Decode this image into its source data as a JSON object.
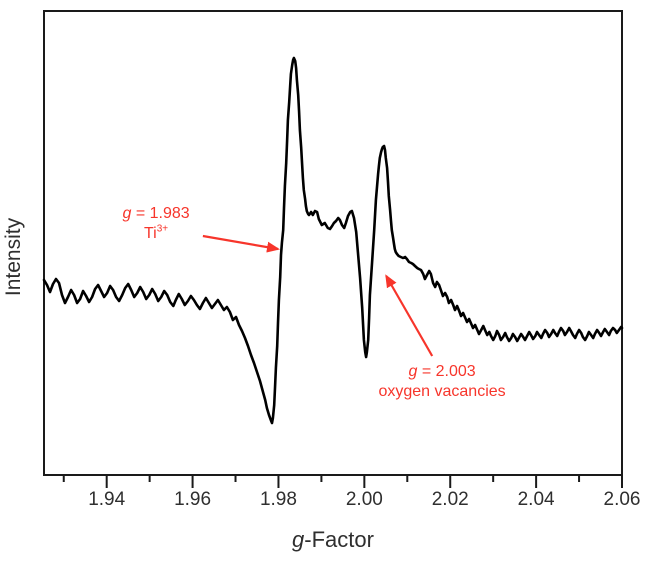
{
  "chart_data": {
    "type": "line",
    "xlabel_italic": "g",
    "xlabel_rest": "-Factor",
    "ylabel": "Intensity",
    "xlim": [
      1.9254,
      2.06
    ],
    "ylim": [
      -175,
      289
    ],
    "grid": false,
    "legend": "none",
    "line_color": "#000000",
    "axis_color": "#1a1a1a",
    "text_color": "#2f2f2f",
    "accent_red": "#f7352b",
    "x_major_ticks": [
      {
        "g": 1.94,
        "label": "1.94"
      },
      {
        "g": 1.96,
        "label": "1.96"
      },
      {
        "g": 1.98,
        "label": "1.98"
      },
      {
        "g": 2.0,
        "label": "2.00"
      },
      {
        "g": 2.02,
        "label": "2.02"
      },
      {
        "g": 2.04,
        "label": "2.04"
      },
      {
        "g": 2.06,
        "label": "2.06"
      }
    ],
    "x_minor_ticks": [
      1.93,
      1.95,
      1.97,
      1.99,
      2.01,
      2.03,
      2.05
    ],
    "annotations": [
      {
        "id": "ti3plus",
        "color": "#f7352b",
        "line1_italic": "g",
        "line1_rest": " = 1.983",
        "line2_text": "Ti",
        "line2_sup": "3+",
        "anchor_g": 1.9515,
        "anchor_i": 96,
        "arrow": {
          "from": [
            1.9624,
            64
          ],
          "to": [
            1.9799,
            51
          ]
        }
      },
      {
        "id": "oxygen-vacancies",
        "color": "#f7352b",
        "line1_italic": "g",
        "line1_rest": " = 2.003",
        "line2_text": "oxygen vacancies",
        "line2_sup": "",
        "anchor_g": 2.0181,
        "anchor_i": -62,
        "arrow": {
          "from": [
            2.0158,
            -56
          ],
          "to": [
            2.0051,
            24
          ]
        }
      }
    ],
    "series": [
      {
        "points": [
          [
            1.9254,
            20
          ],
          [
            1.9261,
            15
          ],
          [
            1.9268,
            8
          ],
          [
            1.9275,
            16
          ],
          [
            1.9282,
            21
          ],
          [
            1.9289,
            17
          ],
          [
            1.9296,
            5
          ],
          [
            1.9303,
            -3
          ],
          [
            1.931,
            3
          ],
          [
            1.9317,
            10
          ],
          [
            1.9324,
            5
          ],
          [
            1.9331,
            -3
          ],
          [
            1.9338,
            1
          ],
          [
            1.9345,
            9
          ],
          [
            1.9352,
            4
          ],
          [
            1.9359,
            -2
          ],
          [
            1.9366,
            3
          ],
          [
            1.9373,
            11
          ],
          [
            1.938,
            15
          ],
          [
            1.9387,
            9
          ],
          [
            1.9394,
            3
          ],
          [
            1.9401,
            7
          ],
          [
            1.9408,
            14
          ],
          [
            1.9415,
            10
          ],
          [
            1.9422,
            3
          ],
          [
            1.9429,
            -1
          ],
          [
            1.9436,
            5
          ],
          [
            1.9443,
            12
          ],
          [
            1.945,
            16
          ],
          [
            1.9457,
            10
          ],
          [
            1.9464,
            3
          ],
          [
            1.9471,
            7
          ],
          [
            1.9478,
            13
          ],
          [
            1.9485,
            8
          ],
          [
            1.9492,
            1
          ],
          [
            1.9499,
            5
          ],
          [
            1.9506,
            11
          ],
          [
            1.9513,
            6
          ],
          [
            1.952,
            -1
          ],
          [
            1.9527,
            3
          ],
          [
            1.9534,
            9
          ],
          [
            1.9541,
            5
          ],
          [
            1.9548,
            -2
          ],
          [
            1.9555,
            -6
          ],
          [
            1.9561,
            0
          ],
          [
            1.9568,
            6
          ],
          [
            1.9575,
            1
          ],
          [
            1.9582,
            -5
          ],
          [
            1.9589,
            -1
          ],
          [
            1.9596,
            4
          ],
          [
            1.9603,
            0
          ],
          [
            1.961,
            -5
          ],
          [
            1.9617,
            -9
          ],
          [
            1.9624,
            -3
          ],
          [
            1.9631,
            2
          ],
          [
            1.9638,
            -3
          ],
          [
            1.9645,
            -8
          ],
          [
            1.9652,
            -4
          ],
          [
            1.9659,
            0
          ],
          [
            1.9666,
            -5
          ],
          [
            1.9673,
            -10
          ],
          [
            1.968,
            -7
          ],
          [
            1.9687,
            -12
          ],
          [
            1.9694,
            -20
          ],
          [
            1.9701,
            -17
          ],
          [
            1.9708,
            -25
          ],
          [
            1.9715,
            -31
          ],
          [
            1.9722,
            -38
          ],
          [
            1.9729,
            -46
          ],
          [
            1.9736,
            -55
          ],
          [
            1.9743,
            -63
          ],
          [
            1.975,
            -72
          ],
          [
            1.9757,
            -81
          ],
          [
            1.9764,
            -92
          ],
          [
            1.9769,
            -100
          ],
          [
            1.9773,
            -108
          ],
          [
            1.9778,
            -115
          ],
          [
            1.9783,
            -121
          ],
          [
            1.9785,
            -123
          ],
          [
            1.9787,
            -118
          ],
          [
            1.979,
            -105
          ],
          [
            1.9792,
            -88
          ],
          [
            1.9794,
            -68
          ],
          [
            1.9797,
            -46
          ],
          [
            1.9799,
            -23
          ],
          [
            1.9801,
            0
          ],
          [
            1.9804,
            23
          ],
          [
            1.9806,
            45
          ],
          [
            1.9808,
            57
          ],
          [
            1.9811,
            70
          ],
          [
            1.9813,
            92
          ],
          [
            1.9815,
            114
          ],
          [
            1.9818,
            137
          ],
          [
            1.982,
            159
          ],
          [
            1.9822,
            180
          ],
          [
            1.9825,
            198
          ],
          [
            1.9827,
            213
          ],
          [
            1.9829,
            226
          ],
          [
            1.9832,
            235
          ],
          [
            1.9834,
            240
          ],
          [
            1.9836,
            242
          ],
          [
            1.9839,
            239
          ],
          [
            1.9841,
            232
          ],
          [
            1.9843,
            220
          ],
          [
            1.9846,
            205
          ],
          [
            1.9848,
            188
          ],
          [
            1.985,
            170
          ],
          [
            1.9853,
            152
          ],
          [
            1.9855,
            136
          ],
          [
            1.9857,
            122
          ],
          [
            1.9859,
            110
          ],
          [
            1.9862,
            101
          ],
          [
            1.9864,
            94
          ],
          [
            1.9866,
            89
          ],
          [
            1.9869,
            86
          ],
          [
            1.9871,
            85
          ],
          [
            1.9873,
            86
          ],
          [
            1.9876,
            88
          ],
          [
            1.988,
            85
          ],
          [
            1.9885,
            89
          ],
          [
            1.989,
            88
          ],
          [
            1.9894,
            81
          ],
          [
            1.9901,
            75
          ],
          [
            1.9908,
            77
          ],
          [
            1.9915,
            72
          ],
          [
            1.992,
            71
          ],
          [
            1.9925,
            74
          ],
          [
            1.9929,
            77
          ],
          [
            1.9934,
            79
          ],
          [
            1.9939,
            82
          ],
          [
            1.9943,
            80
          ],
          [
            1.9948,
            75
          ],
          [
            1.9953,
            72
          ],
          [
            1.9957,
            77
          ],
          [
            1.9962,
            84
          ],
          [
            1.9967,
            88
          ],
          [
            1.9971,
            89
          ],
          [
            1.9976,
            82
          ],
          [
            1.9981,
            68
          ],
          [
            1.9985,
            48
          ],
          [
            1.999,
            22
          ],
          [
            1.9995,
            -8
          ],
          [
            1.9997,
            -25
          ],
          [
            1.9999,
            -40
          ],
          [
            2.0002,
            -52
          ],
          [
            2.0004,
            -57
          ],
          [
            2.0006,
            -52
          ],
          [
            2.0009,
            -40
          ],
          [
            2.0011,
            -18
          ],
          [
            2.0013,
            5
          ],
          [
            2.0018,
            38
          ],
          [
            2.0023,
            70
          ],
          [
            2.0027,
            100
          ],
          [
            2.0032,
            126
          ],
          [
            2.0034,
            134
          ],
          [
            2.0036,
            142
          ],
          [
            2.0039,
            148
          ],
          [
            2.0041,
            151
          ],
          [
            2.0043,
            153
          ],
          [
            2.0046,
            154
          ],
          [
            2.0048,
            150
          ],
          [
            2.005,
            142
          ],
          [
            2.0053,
            132
          ],
          [
            2.0055,
            118
          ],
          [
            2.0057,
            104
          ],
          [
            2.006,
            90
          ],
          [
            2.0062,
            79
          ],
          [
            2.0064,
            70
          ],
          [
            2.0067,
            62
          ],
          [
            2.0069,
            56
          ],
          [
            2.0071,
            51
          ],
          [
            2.0073,
            48
          ],
          [
            2.0076,
            46
          ],
          [
            2.008,
            44
          ],
          [
            2.0085,
            43
          ],
          [
            2.009,
            42
          ],
          [
            2.0095,
            43
          ],
          [
            2.0099,
            41
          ],
          [
            2.0104,
            38
          ],
          [
            2.0109,
            37
          ],
          [
            2.0113,
            36
          ],
          [
            2.0118,
            34
          ],
          [
            2.0123,
            32
          ],
          [
            2.0127,
            31
          ],
          [
            2.0132,
            30
          ],
          [
            2.0137,
            26
          ],
          [
            2.0141,
            21
          ],
          [
            2.0146,
            25
          ],
          [
            2.0151,
            29
          ],
          [
            2.0155,
            26
          ],
          [
            2.016,
            17
          ],
          [
            2.0165,
            13
          ],
          [
            2.0169,
            18
          ],
          [
            2.0174,
            15
          ],
          [
            2.0179,
            9
          ],
          [
            2.0183,
            4
          ],
          [
            2.0188,
            7
          ],
          [
            2.0193,
            3
          ],
          [
            2.0197,
            -3
          ],
          [
            2.0202,
            0
          ],
          [
            2.0207,
            -5
          ],
          [
            2.0211,
            -10
          ],
          [
            2.0216,
            -6
          ],
          [
            2.0221,
            -11
          ],
          [
            2.0225,
            -16
          ],
          [
            2.023,
            -13
          ],
          [
            2.0235,
            -18
          ],
          [
            2.0239,
            -22
          ],
          [
            2.0244,
            -19
          ],
          [
            2.0249,
            -24
          ],
          [
            2.0253,
            -28
          ],
          [
            2.0258,
            -25
          ],
          [
            2.0263,
            -30
          ],
          [
            2.0267,
            -34
          ],
          [
            2.0272,
            -30
          ],
          [
            2.0277,
            -26
          ],
          [
            2.0281,
            -30
          ],
          [
            2.0286,
            -35
          ],
          [
            2.0291,
            -32
          ],
          [
            2.0295,
            -36
          ],
          [
            2.03,
            -40
          ],
          [
            2.0305,
            -36
          ],
          [
            2.0309,
            -31
          ],
          [
            2.0314,
            -35
          ],
          [
            2.0318,
            -40
          ],
          [
            2.0323,
            -37
          ],
          [
            2.0328,
            -33
          ],
          [
            2.0332,
            -37
          ],
          [
            2.0337,
            -41
          ],
          [
            2.0342,
            -38
          ],
          [
            2.0346,
            -34
          ],
          [
            2.0351,
            -37
          ],
          [
            2.0356,
            -41
          ],
          [
            2.036,
            -38
          ],
          [
            2.0365,
            -34
          ],
          [
            2.037,
            -37
          ],
          [
            2.0374,
            -40
          ],
          [
            2.0379,
            -36
          ],
          [
            2.0384,
            -32
          ],
          [
            2.0388,
            -35
          ],
          [
            2.0393,
            -39
          ],
          [
            2.0398,
            -36
          ],
          [
            2.0402,
            -32
          ],
          [
            2.0407,
            -35
          ],
          [
            2.0412,
            -38
          ],
          [
            2.0416,
            -34
          ],
          [
            2.0421,
            -30
          ],
          [
            2.0426,
            -33
          ],
          [
            2.043,
            -37
          ],
          [
            2.0435,
            -34
          ],
          [
            2.044,
            -30
          ],
          [
            2.0444,
            -33
          ],
          [
            2.0449,
            -36
          ],
          [
            2.0453,
            -32
          ],
          [
            2.0458,
            -28
          ],
          [
            2.0463,
            -31
          ],
          [
            2.0467,
            -35
          ],
          [
            2.0472,
            -32
          ],
          [
            2.0477,
            -28
          ],
          [
            2.0481,
            -31
          ],
          [
            2.0486,
            -35
          ],
          [
            2.0491,
            -38
          ],
          [
            2.0495,
            -34
          ],
          [
            2.05,
            -30
          ],
          [
            2.0505,
            -33
          ],
          [
            2.0509,
            -37
          ],
          [
            2.0514,
            -40
          ],
          [
            2.0519,
            -36
          ],
          [
            2.0523,
            -32
          ],
          [
            2.0528,
            -35
          ],
          [
            2.0533,
            -38
          ],
          [
            2.0537,
            -34
          ],
          [
            2.0542,
            -30
          ],
          [
            2.0547,
            -33
          ],
          [
            2.0551,
            -36
          ],
          [
            2.0556,
            -32
          ],
          [
            2.056,
            -29
          ],
          [
            2.0565,
            -32
          ],
          [
            2.057,
            -35
          ],
          [
            2.0574,
            -31
          ],
          [
            2.0579,
            -28
          ],
          [
            2.0584,
            -30
          ],
          [
            2.0588,
            -33
          ],
          [
            2.0593,
            -30
          ],
          [
            2.0598,
            -27
          ],
          [
            2.06,
            -28
          ]
        ]
      }
    ]
  }
}
